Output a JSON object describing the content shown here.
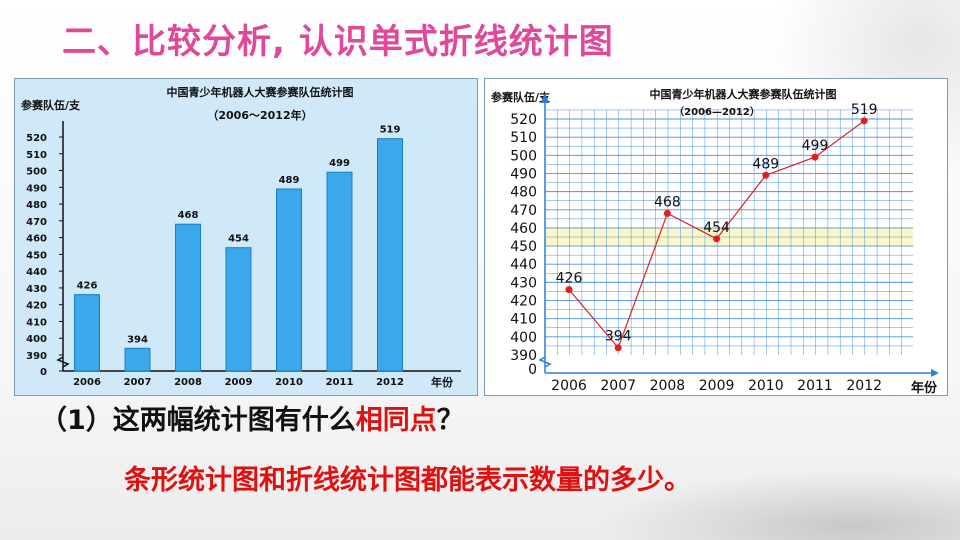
{
  "slide": {
    "title": "二、比较分析, 认识单式折线统计图",
    "question_prefix": "（1）这两幅统计图有什么",
    "question_highlight": "相同点",
    "question_suffix": "？",
    "answer": "条形统计图和折线统计图都能表示数量的多少。"
  },
  "colors": {
    "title": "#e0489a",
    "bar": "#3aa8ea",
    "line": "#e02020",
    "grid": "#4a90e0",
    "band": "#fbf7c8"
  },
  "chart_data": [
    {
      "type": "bar",
      "title": "中国青少年机器人大赛参赛队伍统计图",
      "subtitle": "（2006～2012年）",
      "ylabel": "参赛队伍/支",
      "xlabel": "年份",
      "categories": [
        "2006",
        "2007",
        "2008",
        "2009",
        "2010",
        "2011",
        "2012"
      ],
      "values": [
        426,
        394,
        468,
        454,
        489,
        499,
        519
      ],
      "y_ticks": [
        "0",
        "390",
        "400",
        "410",
        "420",
        "430",
        "440",
        "450",
        "460",
        "470",
        "480",
        "490",
        "500",
        "510",
        "520"
      ],
      "ylim": [
        390,
        525
      ],
      "axis_break": true,
      "grid": false
    },
    {
      "type": "line",
      "title": "中国青少年机器人大赛参赛队伍统计图",
      "subtitle": "（2006—2012）",
      "ylabel": "参赛队伍/支",
      "xlabel": "年份",
      "categories": [
        "2006",
        "2007",
        "2008",
        "2009",
        "2010",
        "2011",
        "2012"
      ],
      "values": [
        426,
        394,
        468,
        454,
        489,
        499,
        519
      ],
      "y_ticks": [
        "0",
        "390",
        "400",
        "410",
        "420",
        "430",
        "440",
        "450",
        "460",
        "470",
        "480",
        "490",
        "500",
        "510",
        "520"
      ],
      "ylim": [
        390,
        525
      ],
      "axis_break": true,
      "grid": true
    }
  ]
}
